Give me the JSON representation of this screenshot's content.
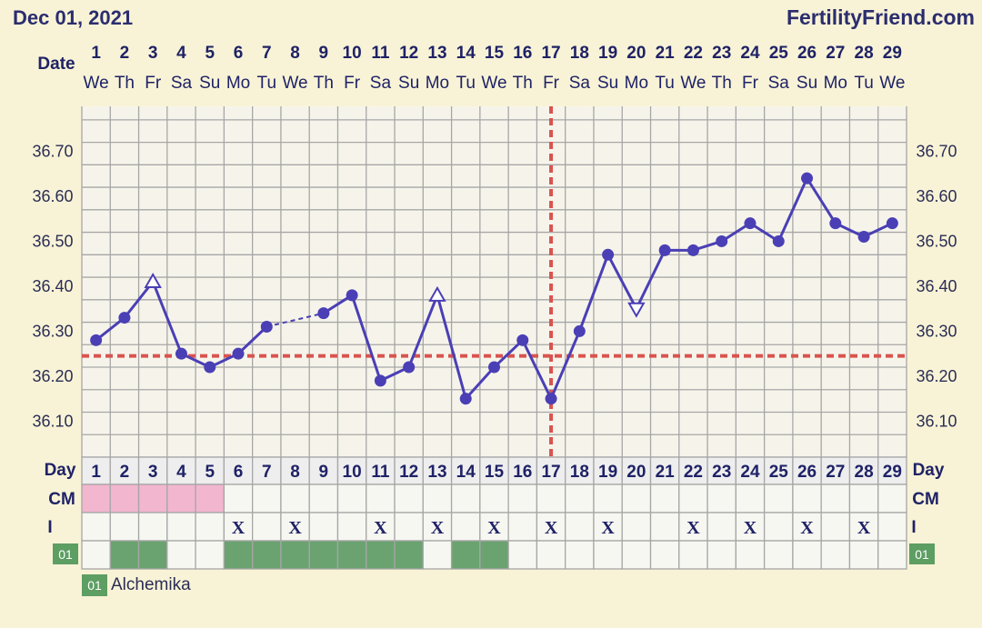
{
  "header": {
    "date": "Dec 01, 2021",
    "site": "FertilityFriend.com"
  },
  "labels": {
    "date_row": "Date",
    "day_row": "Day",
    "cm_row": "CM",
    "i_row": "I",
    "tag_code": "01"
  },
  "legend": {
    "code": "01",
    "name": "Alchemika"
  },
  "colors": {
    "line": "#4a3fb5",
    "coverline": "#d9534f",
    "grid": "#a6a6a6",
    "cm_pink": "#f2b6cf",
    "med_green": "#6aa36f",
    "tag_green": "#5d9e62",
    "background": "#f8f3d6"
  },
  "chart_data": {
    "type": "line",
    "title": "",
    "xlabel": "",
    "ylabel": "",
    "days": [
      1,
      2,
      3,
      4,
      5,
      6,
      7,
      8,
      9,
      10,
      11,
      12,
      13,
      14,
      15,
      16,
      17,
      18,
      19,
      20,
      21,
      22,
      23,
      24,
      25,
      26,
      27,
      28,
      29
    ],
    "weekdays": [
      "We",
      "Th",
      "Fr",
      "Sa",
      "Su",
      "Mo",
      "Tu",
      "We",
      "Th",
      "Fr",
      "Sa",
      "Su",
      "Mo",
      "Tu",
      "We",
      "Th",
      "Fr",
      "Sa",
      "Su",
      "Mo",
      "Tu",
      "We",
      "Th",
      "Fr",
      "Sa",
      "Su",
      "Mo",
      "Tu",
      "We"
    ],
    "temperatures": [
      36.28,
      36.33,
      36.41,
      36.25,
      36.22,
      36.25,
      36.31,
      null,
      36.34,
      36.38,
      36.19,
      36.22,
      36.38,
      36.15,
      36.22,
      36.28,
      36.15,
      36.3,
      36.47,
      36.35,
      36.48,
      36.48,
      36.5,
      36.54,
      36.5,
      36.64,
      36.54,
      36.51,
      36.54
    ],
    "point_markers": [
      "dot",
      "dot",
      "triangle-up",
      "dot",
      "dot",
      "dot",
      "dot",
      "none",
      "dot",
      "dot",
      "dot",
      "dot",
      "triangle-up",
      "dot",
      "dot",
      "dot",
      "dot",
      "dot",
      "dot",
      "triangle-down",
      "dot",
      "dot",
      "dot",
      "dot",
      "dot",
      "dot",
      "dot",
      "dot",
      "dot"
    ],
    "dashed_gap": {
      "from_day": 7,
      "to_day": 9
    },
    "coverline": 36.245,
    "ovulation_day": 17,
    "ylim": [
      36.02,
      36.8
    ],
    "yticks": [
      "36.10",
      "36.20",
      "36.30",
      "36.40",
      "36.50",
      "36.60",
      "36.70"
    ],
    "cm_days": [
      1,
      2,
      3,
      4,
      5
    ],
    "intercourse_days": [
      6,
      8,
      11,
      13,
      15,
      17,
      19,
      22,
      24,
      26,
      28
    ],
    "medication_days": [
      2,
      3,
      6,
      7,
      8,
      9,
      10,
      11,
      12,
      14,
      15
    ]
  }
}
